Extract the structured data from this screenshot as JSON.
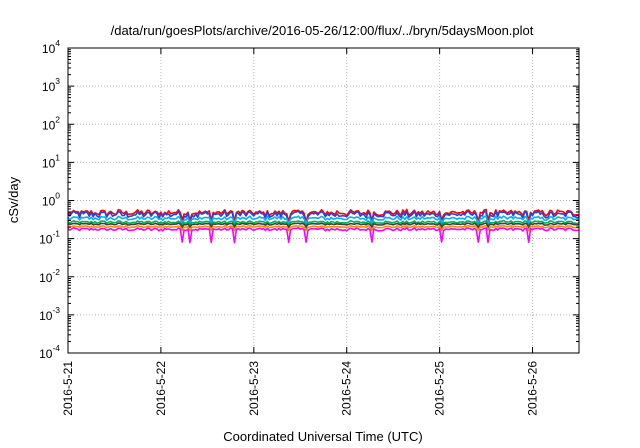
{
  "chart_data": {
    "type": "line",
    "title": "/data/run/goesPlots/archive/2016-05-26/12:00/flux/../bryn/5daysMoon.plot",
    "xlabel": "Coordinated Universal Time (UTC)",
    "ylabel": "cSv/day",
    "yscale": "log",
    "ylim": [
      0.0001,
      10000
    ],
    "xlim": [
      "2016-05-21T00:00",
      "2016-05-26T12:00"
    ],
    "y_ticks": [
      {
        "base": "10",
        "exp": "-4"
      },
      {
        "base": "10",
        "exp": "-3"
      },
      {
        "base": "10",
        "exp": "-2"
      },
      {
        "base": "10",
        "exp": "-1"
      },
      {
        "base": "10",
        "exp": "0"
      },
      {
        "base": "10",
        "exp": "1"
      },
      {
        "base": "10",
        "exp": "2"
      },
      {
        "base": "10",
        "exp": "3"
      },
      {
        "base": "10",
        "exp": "4"
      }
    ],
    "x_ticks": [
      "2016-5-21",
      "2016-5-22",
      "2016-5-23",
      "2016-5-24",
      "2016-5-25",
      "2016-5-26"
    ],
    "grid": true,
    "legend": "none",
    "series": [
      {
        "color": "#ff0000",
        "level": 0.48,
        "amplitude": 0.09,
        "dips": 0.25
      },
      {
        "color": "#2f3fd8",
        "level": 0.43,
        "amplitude": 0.1,
        "dips": 0.45
      },
      {
        "color": "#00b0ff",
        "level": 0.34,
        "amplitude": 0.06,
        "dips": 0.15
      },
      {
        "color": "#00b050",
        "level": 0.27,
        "amplitude": 0.04,
        "dips": 0.1
      },
      {
        "color": "#404040",
        "level": 0.24,
        "amplitude": 0.03,
        "dips": 0.1
      },
      {
        "color": "#ff8c00",
        "level": 0.205,
        "amplitude": 0.03,
        "dips": 0.15
      },
      {
        "color": "#ff00ff",
        "level": 0.175,
        "amplitude": 0.045,
        "dips": 0.5
      }
    ]
  }
}
